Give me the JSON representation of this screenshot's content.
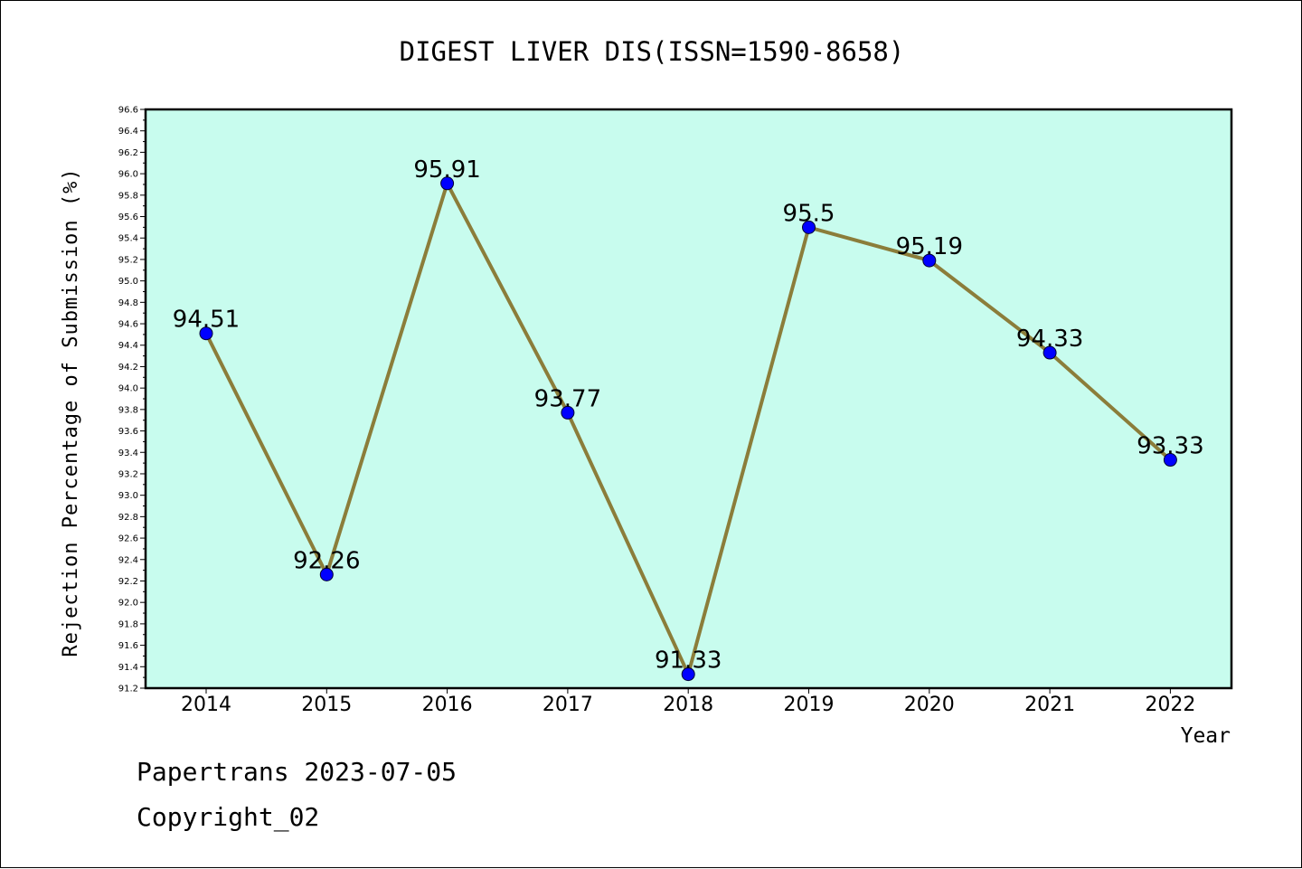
{
  "chart_data": {
    "type": "line",
    "title": "DIGEST LIVER DIS(ISSN=1590-8658)",
    "xlabel": "Year",
    "ylabel": "Rejection Percentage of Submission (%)",
    "categories": [
      "2014",
      "2015",
      "2016",
      "2017",
      "2018",
      "2019",
      "2020",
      "2021",
      "2022"
    ],
    "values": [
      94.51,
      92.26,
      95.91,
      93.77,
      91.33,
      95.5,
      95.19,
      94.33,
      93.33
    ],
    "data_labels": [
      "94.51",
      "92.26",
      "95.91",
      "93.77",
      "91.33",
      "95.5",
      "95.19",
      "94.33",
      "93.33"
    ],
    "ylim": [
      91.2,
      96.6
    ],
    "ytick_step": 0.2,
    "yticks": [
      "91.2",
      "91.4",
      "91.6",
      "91.8",
      "92.0",
      "92.2",
      "92.4",
      "92.6",
      "92.8",
      "93.0",
      "93.2",
      "93.4",
      "93.6",
      "93.8",
      "94.0",
      "94.2",
      "94.4",
      "94.6",
      "94.8",
      "95.0",
      "95.2",
      "95.4",
      "95.6",
      "95.8",
      "96.0",
      "96.2",
      "96.4",
      "96.6"
    ],
    "grid": false,
    "colors": {
      "plot_background": "#c8fcee",
      "line": "#8b7d3a",
      "marker": "#0000ff"
    }
  },
  "footer": {
    "line1": "Papertrans 2023-07-05",
    "line2": "Copyright_02"
  }
}
